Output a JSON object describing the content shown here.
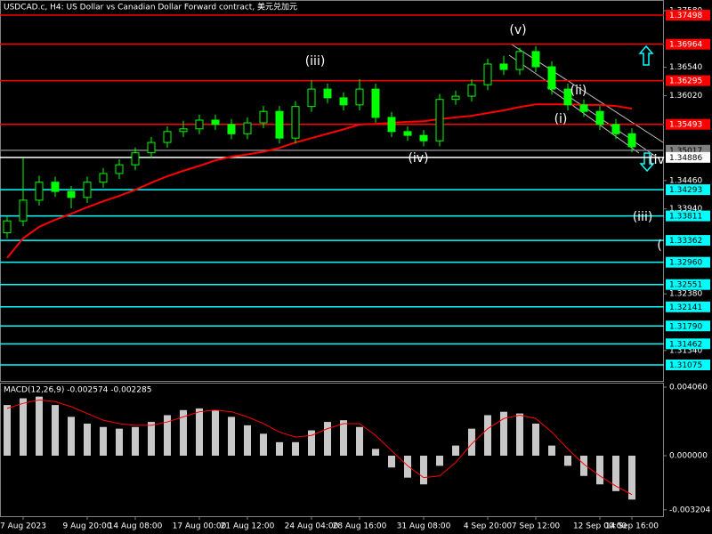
{
  "chart_data": {
    "type": "candlestick",
    "title": "USDCAD.c, H4:  US Dollar vs Canadian Dollar Forward contract, 美元兑加元",
    "categories": [
      null,
      "7 Aug 2023",
      null,
      null,
      null,
      "9 Aug 20:00",
      null,
      null,
      "14 Aug 08:00",
      null,
      null,
      null,
      "17 Aug 00:00",
      null,
      null,
      "21 Aug 12:00",
      null,
      null,
      null,
      "24 Aug 04:00",
      null,
      null,
      "28 Aug 16:00",
      null,
      null,
      null,
      "31 Aug 08:00",
      null,
      null,
      null,
      "4 Sep 20:00",
      null,
      null,
      "7 Sep 12:00",
      null,
      null,
      null,
      "12 Sep 00:00",
      null,
      "14 Sep 16:00"
    ],
    "ohlc": [
      [
        1.335,
        1.338,
        1.334,
        1.3372
      ],
      [
        1.3372,
        1.3488,
        1.3362,
        1.341
      ],
      [
        1.341,
        1.3455,
        1.34,
        1.3443
      ],
      [
        1.3443,
        1.3453,
        1.3416,
        1.3426
      ],
      [
        1.3426,
        1.3436,
        1.3395,
        1.3415
      ],
      [
        1.3415,
        1.3453,
        1.3405,
        1.3443
      ],
      [
        1.3443,
        1.3469,
        1.3433,
        1.3459
      ],
      [
        1.3459,
        1.3485,
        1.3449,
        1.3475
      ],
      [
        1.3475,
        1.3507,
        1.3465,
        1.3497
      ],
      [
        1.3497,
        1.3526,
        1.3487,
        1.3516
      ],
      [
        1.3516,
        1.3546,
        1.3506,
        1.3536
      ],
      [
        1.3536,
        1.3556,
        1.3526,
        1.3541
      ],
      [
        1.3541,
        1.3567,
        1.3531,
        1.3557
      ],
      [
        1.3557,
        1.3567,
        1.3539,
        1.3549
      ],
      [
        1.3549,
        1.3559,
        1.3522,
        1.3532
      ],
      [
        1.3532,
        1.3562,
        1.3522,
        1.3552
      ],
      [
        1.3552,
        1.3583,
        1.3542,
        1.3573
      ],
      [
        1.3573,
        1.3583,
        1.3514,
        1.3524
      ],
      [
        1.3524,
        1.3592,
        1.3514,
        1.3582
      ],
      [
        1.3582,
        1.363,
        1.3572,
        1.3614
      ],
      [
        1.3614,
        1.3624,
        1.3588,
        1.3598
      ],
      [
        1.3598,
        1.3608,
        1.3575,
        1.3585
      ],
      [
        1.3585,
        1.3632,
        1.3575,
        1.3614
      ],
      [
        1.3614,
        1.3624,
        1.3552,
        1.3562
      ],
      [
        1.3562,
        1.3572,
        1.3526,
        1.3536
      ],
      [
        1.3536,
        1.3546,
        1.3519,
        1.3529
      ],
      [
        1.3529,
        1.3539,
        1.3509,
        1.3519
      ],
      [
        1.3519,
        1.3605,
        1.3509,
        1.3595
      ],
      [
        1.3595,
        1.3611,
        1.3585,
        1.3601
      ],
      [
        1.3601,
        1.3632,
        1.3591,
        1.3622
      ],
      [
        1.3622,
        1.367,
        1.3612,
        1.366
      ],
      [
        1.366,
        1.3675,
        1.364,
        1.365
      ],
      [
        1.365,
        1.369,
        1.364,
        1.3683
      ],
      [
        1.3683,
        1.3693,
        1.3645,
        1.3655
      ],
      [
        1.3655,
        1.3665,
        1.3604,
        1.3614
      ],
      [
        1.3614,
        1.3624,
        1.3575,
        1.3585
      ],
      [
        1.3585,
        1.3595,
        1.3563,
        1.3573
      ],
      [
        1.3573,
        1.3583,
        1.3539,
        1.3549
      ],
      [
        1.3549,
        1.3559,
        1.3522,
        1.3532
      ],
      [
        1.3532,
        1.3542,
        1.3498,
        1.3508
      ]
    ],
    "candle_color": "#00ff00",
    "moving_average": {
      "color": "#ff0000",
      "values": [
        1.3304,
        1.334,
        1.3361,
        1.3374,
        1.3385,
        1.3397,
        1.3408,
        1.3418,
        1.3429,
        1.3442,
        1.3454,
        1.3464,
        1.3473,
        1.3483,
        1.349,
        1.3494,
        1.3499,
        1.3506,
        1.3516,
        1.3524,
        1.3532,
        1.354,
        1.3549,
        1.355,
        1.3552,
        1.3554,
        1.3555,
        1.3559,
        1.3562,
        1.3565,
        1.357,
        1.3575,
        1.3581,
        1.3586,
        1.3586,
        1.3586,
        1.3585,
        1.3585,
        1.3583,
        1.3578
      ]
    },
    "ylim": [
      1.30781,
      1.37776
    ],
    "yticks": [
      {
        "value": 1.3758,
        "label": "1.37580"
      },
      {
        "value": 1.3654,
        "label": "1.36540"
      },
      {
        "value": 1.3602,
        "label": "1.36020"
      },
      {
        "value": 1.3446,
        "label": "1.34460"
      },
      {
        "value": 1.3394,
        "label": "1.33940"
      },
      {
        "value": 1.3238,
        "label": "1.32380"
      },
      {
        "value": 1.3134,
        "label": "1.31340"
      }
    ],
    "levels": [
      1.37498,
      1.36964,
      1.36295,
      1.35493,
      1.35017,
      1.34886,
      1.34293,
      1.33811,
      1.33362,
      {
        "value": 1.3296,
        "label": "1.32960"
      },
      1.32551,
      1.32141,
      {
        "value": 1.3179,
        "label": "1.31790"
      },
      1.31462,
      1.31075
    ],
    "level_colors": [
      "#ff0000",
      "#ff0000",
      "#ff0000",
      "#ff0000",
      "#808080",
      "#ffffff",
      "#00ffff",
      "#00ffff",
      "#00ffff",
      "#00ffff",
      "#00ffff",
      "#00ffff",
      "#00ffff",
      "#00ffff",
      "#00ffff"
    ],
    "annotations": [
      "(v)",
      "(iii)",
      "(iv)",
      "(ii)",
      "(i)",
      "(iii)",
      "(iv",
      "("
    ],
    "macd": {
      "title": "MACD(12,26,9) -0.002574 -0.002285",
      "histogram_color": "#c8c8c8",
      "signal_color": "#ff0000",
      "histogram": [
        0.003,
        0.0034,
        0.0035,
        0.003,
        0.0023,
        0.0019,
        0.0017,
        0.0016,
        0.0017,
        0.002,
        0.0024,
        0.0027,
        0.0028,
        0.0027,
        0.0023,
        0.0018,
        0.0013,
        0.0008,
        0.0008,
        0.0015,
        0.002,
        0.0021,
        0.0017,
        0.0004,
        -0.0007,
        -0.0013,
        -0.0017,
        -0.0006,
        0.0006,
        0.0016,
        0.0024,
        0.0026,
        0.0025,
        0.0019,
        0.0006,
        -0.0006,
        -0.0012,
        -0.0017,
        -0.0021,
        -0.0026
      ],
      "signal": [
        0.0028,
        0.0031,
        0.0033,
        0.0032,
        0.0029,
        0.0025,
        0.0021,
        0.0019,
        0.0018,
        0.0018,
        0.002,
        0.0023,
        0.0026,
        0.0027,
        0.0026,
        0.0023,
        0.0019,
        0.0014,
        0.0011,
        0.0012,
        0.0016,
        0.0019,
        0.0019,
        0.0012,
        0.0003,
        -0.0006,
        -0.0013,
        -0.0012,
        -0.0004,
        0.0007,
        0.0016,
        0.0022,
        0.0024,
        0.0022,
        0.0014,
        0.0004,
        -0.0005,
        -0.0012,
        -0.0018,
        -0.0023
      ],
      "ylim": [
        -0.003585,
        0.004323
      ],
      "yticks": [
        {
          "value": 0.00406,
          "label": "0.004060"
        },
        {
          "value": 0,
          "label": "0.000000"
        },
        {
          "value": -0.003204,
          "label": "-0.003204"
        }
      ]
    }
  }
}
